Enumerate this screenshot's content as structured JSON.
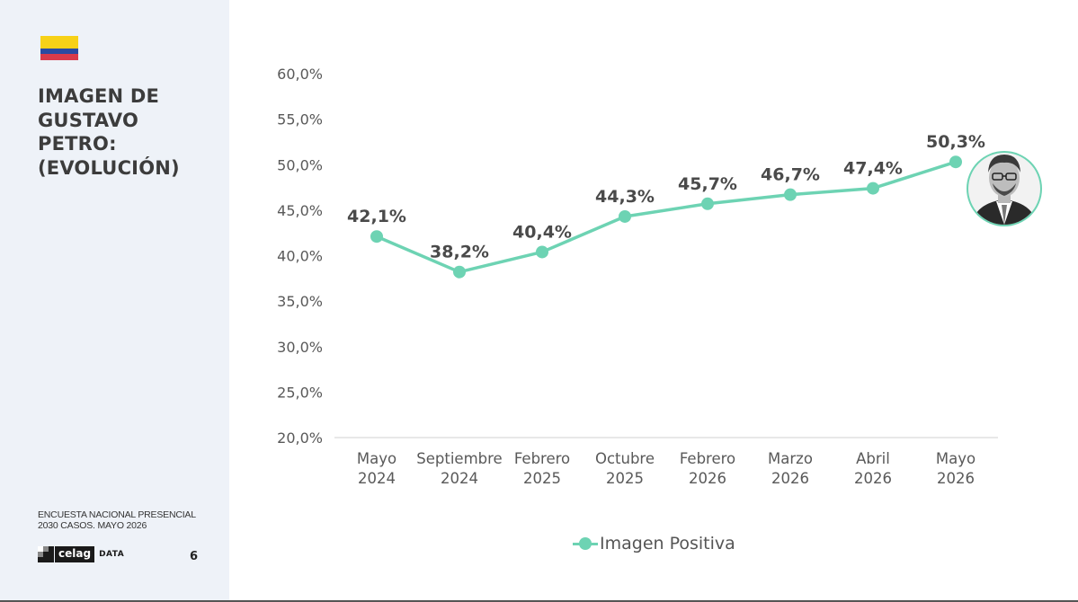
{
  "slide": {
    "title_lines": [
      "IMAGEN DE",
      "GUSTAVO",
      "PETRO:",
      "(EVOLUCIÓN)"
    ],
    "source_lines": [
      "ENCUESTA NACIONAL PRESENCIAL",
      "2030 CASOS. MAYO 2026"
    ],
    "logo_text": "celag",
    "logo_suffix": "DATA",
    "page_number": "6",
    "flag_icon": "colombia-flag-icon",
    "portrait_icon": "person-portrait-icon"
  },
  "chart_data": {
    "type": "line",
    "categories": [
      [
        "Mayo",
        "2024"
      ],
      [
        "Septiembre",
        "2024"
      ],
      [
        "Febrero",
        "2025"
      ],
      [
        "Octubre",
        "2025"
      ],
      [
        "Febrero",
        "2026"
      ],
      [
        "Marzo",
        "2026"
      ],
      [
        "Abril",
        "2026"
      ],
      [
        "Mayo",
        "2026"
      ]
    ],
    "series": [
      {
        "name": "Imagen Positiva",
        "values": [
          42.1,
          38.2,
          40.4,
          44.3,
          45.7,
          46.7,
          47.4,
          50.3
        ],
        "labels": [
          "42,1%",
          "38,2%",
          "40,4%",
          "44,3%",
          "45,7%",
          "46,7%",
          "47,4%",
          "50,3%"
        ],
        "color": "#6dd3b3"
      }
    ],
    "ylim": [
      20,
      60
    ],
    "yticks": [
      "20,0%",
      "25,0%",
      "30,0%",
      "35,0%",
      "40,0%",
      "45,0%",
      "50,0%",
      "55,0%",
      "60,0%"
    ],
    "grid": false,
    "legend_position": "bottom"
  }
}
